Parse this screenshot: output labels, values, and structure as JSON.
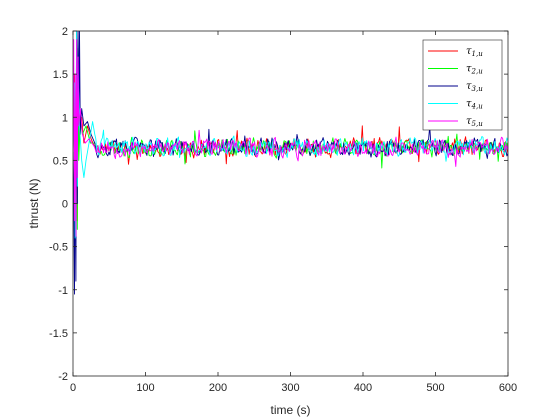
{
  "chart_data": {
    "type": "line",
    "xlabel": "time (s)",
    "ylabel": "thrust (N)",
    "xlim": [
      0,
      600
    ],
    "ylim": [
      -2,
      2
    ],
    "x_ticks": [
      0,
      100,
      200,
      300,
      400,
      500,
      600
    ],
    "y_ticks": [
      -2,
      -1.5,
      -1,
      -0.5,
      0,
      0.5,
      1,
      1.5,
      2
    ],
    "y_tick_labels": [
      "-2",
      "-1.5",
      "-1",
      "-0.5",
      "0",
      "0.5",
      "1",
      "1.5",
      "2"
    ],
    "legend_position": "top-right",
    "grid": false,
    "series": [
      {
        "name": "τ1,u",
        "symbol": "τ",
        "sub": "1,u",
        "color": "#ff0000",
        "seed": 11,
        "transient": [
          [
            0,
            0.6
          ],
          [
            2,
            1.5
          ],
          [
            4,
            0.3
          ],
          [
            5,
            2.0
          ],
          [
            6,
            -0.2
          ],
          [
            7,
            1.8
          ],
          [
            8,
            0.6
          ],
          [
            9,
            0.9
          ],
          [
            12,
            1.0
          ],
          [
            15,
            0.7
          ],
          [
            20,
            0.9
          ],
          [
            25,
            0.75
          ],
          [
            30,
            0.65
          ]
        ]
      },
      {
        "name": "τ2,u",
        "symbol": "τ",
        "sub": "2,u",
        "color": "#00ff00",
        "seed": 23,
        "transient": [
          [
            0,
            0.6
          ],
          [
            2,
            1.2
          ],
          [
            4,
            0.1
          ],
          [
            5,
            1.9
          ],
          [
            6,
            -0.3
          ],
          [
            7,
            1.6
          ],
          [
            8,
            0.5
          ],
          [
            10,
            1.0
          ],
          [
            13,
            0.8
          ],
          [
            18,
            0.9
          ],
          [
            24,
            0.7
          ],
          [
            30,
            0.7
          ]
        ]
      },
      {
        "name": "τ3,u",
        "symbol": "τ",
        "sub": "3,u",
        "color": "#00008b",
        "seed": 37,
        "transient": [
          [
            0,
            0.6
          ],
          [
            1,
            0.2
          ],
          [
            2,
            -1.05
          ],
          [
            3,
            0.8
          ],
          [
            4,
            -0.9
          ],
          [
            5,
            2.0
          ],
          [
            6,
            0.0
          ],
          [
            7,
            2.0
          ],
          [
            8,
            1.0
          ],
          [
            9,
            2.0
          ],
          [
            10,
            0.8
          ],
          [
            12,
            1.1
          ],
          [
            15,
            0.9
          ],
          [
            20,
            0.95
          ],
          [
            25,
            0.8
          ],
          [
            30,
            0.7
          ]
        ]
      },
      {
        "name": "τ4,u",
        "symbol": "τ",
        "sub": "4,u",
        "color": "#00ffff",
        "seed": 41,
        "transient": [
          [
            0,
            0.6
          ],
          [
            2,
            1.4
          ],
          [
            3,
            -0.4
          ],
          [
            5,
            2.0
          ],
          [
            6,
            0.2
          ],
          [
            7,
            1.5
          ],
          [
            9,
            0.9
          ],
          [
            12,
            0.5
          ],
          [
            15,
            0.3
          ],
          [
            18,
            0.5
          ],
          [
            22,
            0.7
          ],
          [
            27,
            0.95
          ],
          [
            30,
            0.8
          ]
        ]
      },
      {
        "name": "τ5,u",
        "symbol": "τ",
        "sub": "5,u",
        "color": "#ff00ff",
        "seed": 53,
        "transient": [
          [
            0,
            0.6
          ],
          [
            1,
            1.9
          ],
          [
            2,
            -0.2
          ],
          [
            3,
            1.5
          ],
          [
            4,
            -0.38
          ],
          [
            5,
            1.9
          ],
          [
            6,
            0.3
          ],
          [
            7,
            1.7
          ],
          [
            8,
            0.9
          ],
          [
            10,
            1.1
          ],
          [
            13,
            0.8
          ],
          [
            17,
            0.7
          ],
          [
            22,
            0.75
          ],
          [
            30,
            0.65
          ]
        ]
      }
    ],
    "steady_state": {
      "mean": 0.65,
      "amplitude": 0.1,
      "from": 30,
      "to": 600,
      "step": 1.5
    }
  }
}
